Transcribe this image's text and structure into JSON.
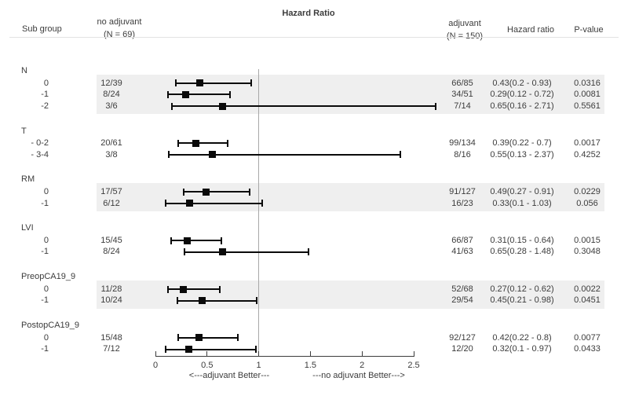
{
  "title": "Hazard Ratio",
  "header": {
    "subgroup": "Sub group",
    "arm1_line1": "no adjuvant",
    "arm1_line2": "(N = 69)",
    "arm2_line1": "adjuvant",
    "arm2_line2": "(N = 150)",
    "hazard_ratio": "Hazard ratio",
    "p_value": "P-value"
  },
  "axis": {
    "ticks": [
      0,
      0.5,
      1,
      1.5,
      2,
      2.5
    ],
    "tick_labels": [
      "0",
      "0.5",
      "1",
      "1.5",
      "2",
      "2.5"
    ],
    "reference_value": 1,
    "left_label": "<---adjuvant Better---",
    "right_label": "---no adjuvant Better--->"
  },
  "colors": {
    "band": "#efefef",
    "text": "#3c3c3c",
    "marker": "#0a0a0a",
    "reference_line": "#a8a8a8",
    "header_separator": "#e2e2e2"
  },
  "chart_data": {
    "type": "forest",
    "xlim": [
      0,
      2.5
    ],
    "reference_line": 1,
    "legend_left": "<---adjuvant Better---",
    "legend_right": "---no adjuvant Better--->",
    "groups": [
      {
        "label": "N",
        "shaded": true,
        "rows": [
          {
            "subgroup": "0",
            "no_adjuvant": "12/39",
            "adjuvant": "66/85",
            "hr": 0.43,
            "lo": 0.2,
            "hi": 0.93,
            "hr_text": "0.43(0.2 - 0.93)",
            "p": "0.0316"
          },
          {
            "subgroup": "-1",
            "no_adjuvant": "8/24",
            "adjuvant": "34/51",
            "hr": 0.29,
            "lo": 0.12,
            "hi": 0.72,
            "hr_text": "0.29(0.12 - 0.72)",
            "p": "0.0081"
          },
          {
            "subgroup": "-2",
            "no_adjuvant": "3/6",
            "adjuvant": "7/14",
            "hr": 0.65,
            "lo": 0.16,
            "hi": 2.71,
            "hr_text": "0.65(0.16 - 2.71)",
            "p": "0.5561"
          }
        ]
      },
      {
        "label": "T",
        "shaded": false,
        "rows": [
          {
            "subgroup": "- 0-2",
            "no_adjuvant": "20/61",
            "adjuvant": "99/134",
            "hr": 0.39,
            "lo": 0.22,
            "hi": 0.7,
            "hr_text": "0.39(0.22 - 0.7)",
            "p": "0.0017"
          },
          {
            "subgroup": "- 3-4",
            "no_adjuvant": "3/8",
            "adjuvant": "8/16",
            "hr": 0.55,
            "lo": 0.13,
            "hi": 2.37,
            "hr_text": "0.55(0.13 - 2.37)",
            "p": "0.4252"
          }
        ]
      },
      {
        "label": "RM",
        "shaded": true,
        "rows": [
          {
            "subgroup": "0",
            "no_adjuvant": "17/57",
            "adjuvant": "91/127",
            "hr": 0.49,
            "lo": 0.27,
            "hi": 0.91,
            "hr_text": "0.49(0.27 - 0.91)",
            "p": "0.0229"
          },
          {
            "subgroup": "-1",
            "no_adjuvant": "6/12",
            "adjuvant": "16/23",
            "hr": 0.33,
            "lo": 0.1,
            "hi": 1.03,
            "hr_text": "0.33(0.1 - 1.03)",
            "p": "0.056"
          }
        ]
      },
      {
        "label": "LVI",
        "shaded": false,
        "rows": [
          {
            "subgroup": "0",
            "no_adjuvant": "15/45",
            "adjuvant": "66/87",
            "hr": 0.31,
            "lo": 0.15,
            "hi": 0.64,
            "hr_text": "0.31(0.15 - 0.64)",
            "p": "0.0015"
          },
          {
            "subgroup": "-1",
            "no_adjuvant": "8/24",
            "adjuvant": "41/63",
            "hr": 0.65,
            "lo": 0.28,
            "hi": 1.48,
            "hr_text": "0.65(0.28 - 1.48)",
            "p": "0.3048"
          }
        ]
      },
      {
        "label": "PreopCA19_9",
        "shaded": true,
        "rows": [
          {
            "subgroup": "0",
            "no_adjuvant": "11/28",
            "adjuvant": "52/68",
            "hr": 0.27,
            "lo": 0.12,
            "hi": 0.62,
            "hr_text": "0.27(0.12 - 0.62)",
            "p": "0.0022"
          },
          {
            "subgroup": "-1",
            "no_adjuvant": "10/24",
            "adjuvant": "29/54",
            "hr": 0.45,
            "lo": 0.21,
            "hi": 0.98,
            "hr_text": "0.45(0.21 - 0.98)",
            "p": "0.0451"
          }
        ]
      },
      {
        "label": "PostopCA19_9",
        "shaded": false,
        "rows": [
          {
            "subgroup": "0",
            "no_adjuvant": "15/48",
            "adjuvant": "92/127",
            "hr": 0.42,
            "lo": 0.22,
            "hi": 0.8,
            "hr_text": "0.42(0.22 - 0.8)",
            "p": "0.0077"
          },
          {
            "subgroup": "-1",
            "no_adjuvant": "7/12",
            "adjuvant": "12/20",
            "hr": 0.32,
            "lo": 0.1,
            "hi": 0.97,
            "hr_text": "0.32(0.1 - 0.97)",
            "p": "0.0433"
          }
        ]
      }
    ]
  }
}
